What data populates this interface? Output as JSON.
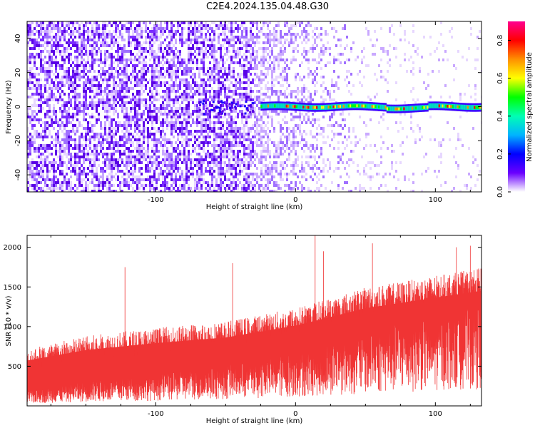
{
  "title": "C2E4.2024.135.04.48.G30",
  "chart_data": [
    {
      "type": "heatmap",
      "name": "spectrogram",
      "xlabel": "Height of straight line (km)",
      "ylabel": "Frequency (Hz)",
      "xlim": [
        -192,
        133
      ],
      "ylim": [
        -50,
        50
      ],
      "xticks": [
        -100,
        0,
        100
      ],
      "yticks": [
        -40,
        -20,
        0,
        20,
        40
      ],
      "colorbar": {
        "label": "Normalized spectral amplitude",
        "range": [
          0,
          0.9
        ],
        "ticks": [
          "0.0",
          "0.2",
          "0.4",
          "0.6",
          "0.8"
        ],
        "colormap": [
          "#ffffff",
          "#6a00ff",
          "#0000ff",
          "#00b4ff",
          "#00ffb4",
          "#00ff00",
          "#ffff00",
          "#ff9000",
          "#ff0000",
          "#ff0090"
        ]
      },
      "line_feature": {
        "frequency": 0,
        "x_start": -25,
        "x_end": 133,
        "peak_amplitude": 0.8
      },
      "noise_colors": [
        "#ffffff",
        "#e7d7ff",
        "#c9a8ff",
        "#a070ff",
        "#7a2cff",
        "#5a00e6"
      ]
    },
    {
      "type": "line",
      "name": "snr",
      "xlabel": "Height of straight line (km)",
      "ylabel": "SNR (10 * v/v)",
      "xlim": [
        -192,
        133
      ],
      "ylim": [
        0,
        2150
      ],
      "xticks": [
        -100,
        0,
        100
      ],
      "yticks": [
        500,
        1000,
        1500,
        2000
      ],
      "color": "#f03434",
      "trend": {
        "x": [
          -192,
          -150,
          -100,
          -50,
          0,
          50,
          100,
          133
        ],
        "baseline": [
          150,
          250,
          320,
          420,
          560,
          780,
          950,
          1050
        ],
        "upper": [
          650,
          800,
          900,
          980,
          1150,
          1400,
          1550,
          1650
        ]
      },
      "spikes": [
        {
          "x": -122,
          "y": 1750
        },
        {
          "x": -45,
          "y": 1800
        },
        {
          "x": 14,
          "y": 2150
        },
        {
          "x": 20,
          "y": 1950
        },
        {
          "x": 55,
          "y": 2050
        },
        {
          "x": 115,
          "y": 2000
        },
        {
          "x": 125,
          "y": 2020
        }
      ]
    }
  ]
}
